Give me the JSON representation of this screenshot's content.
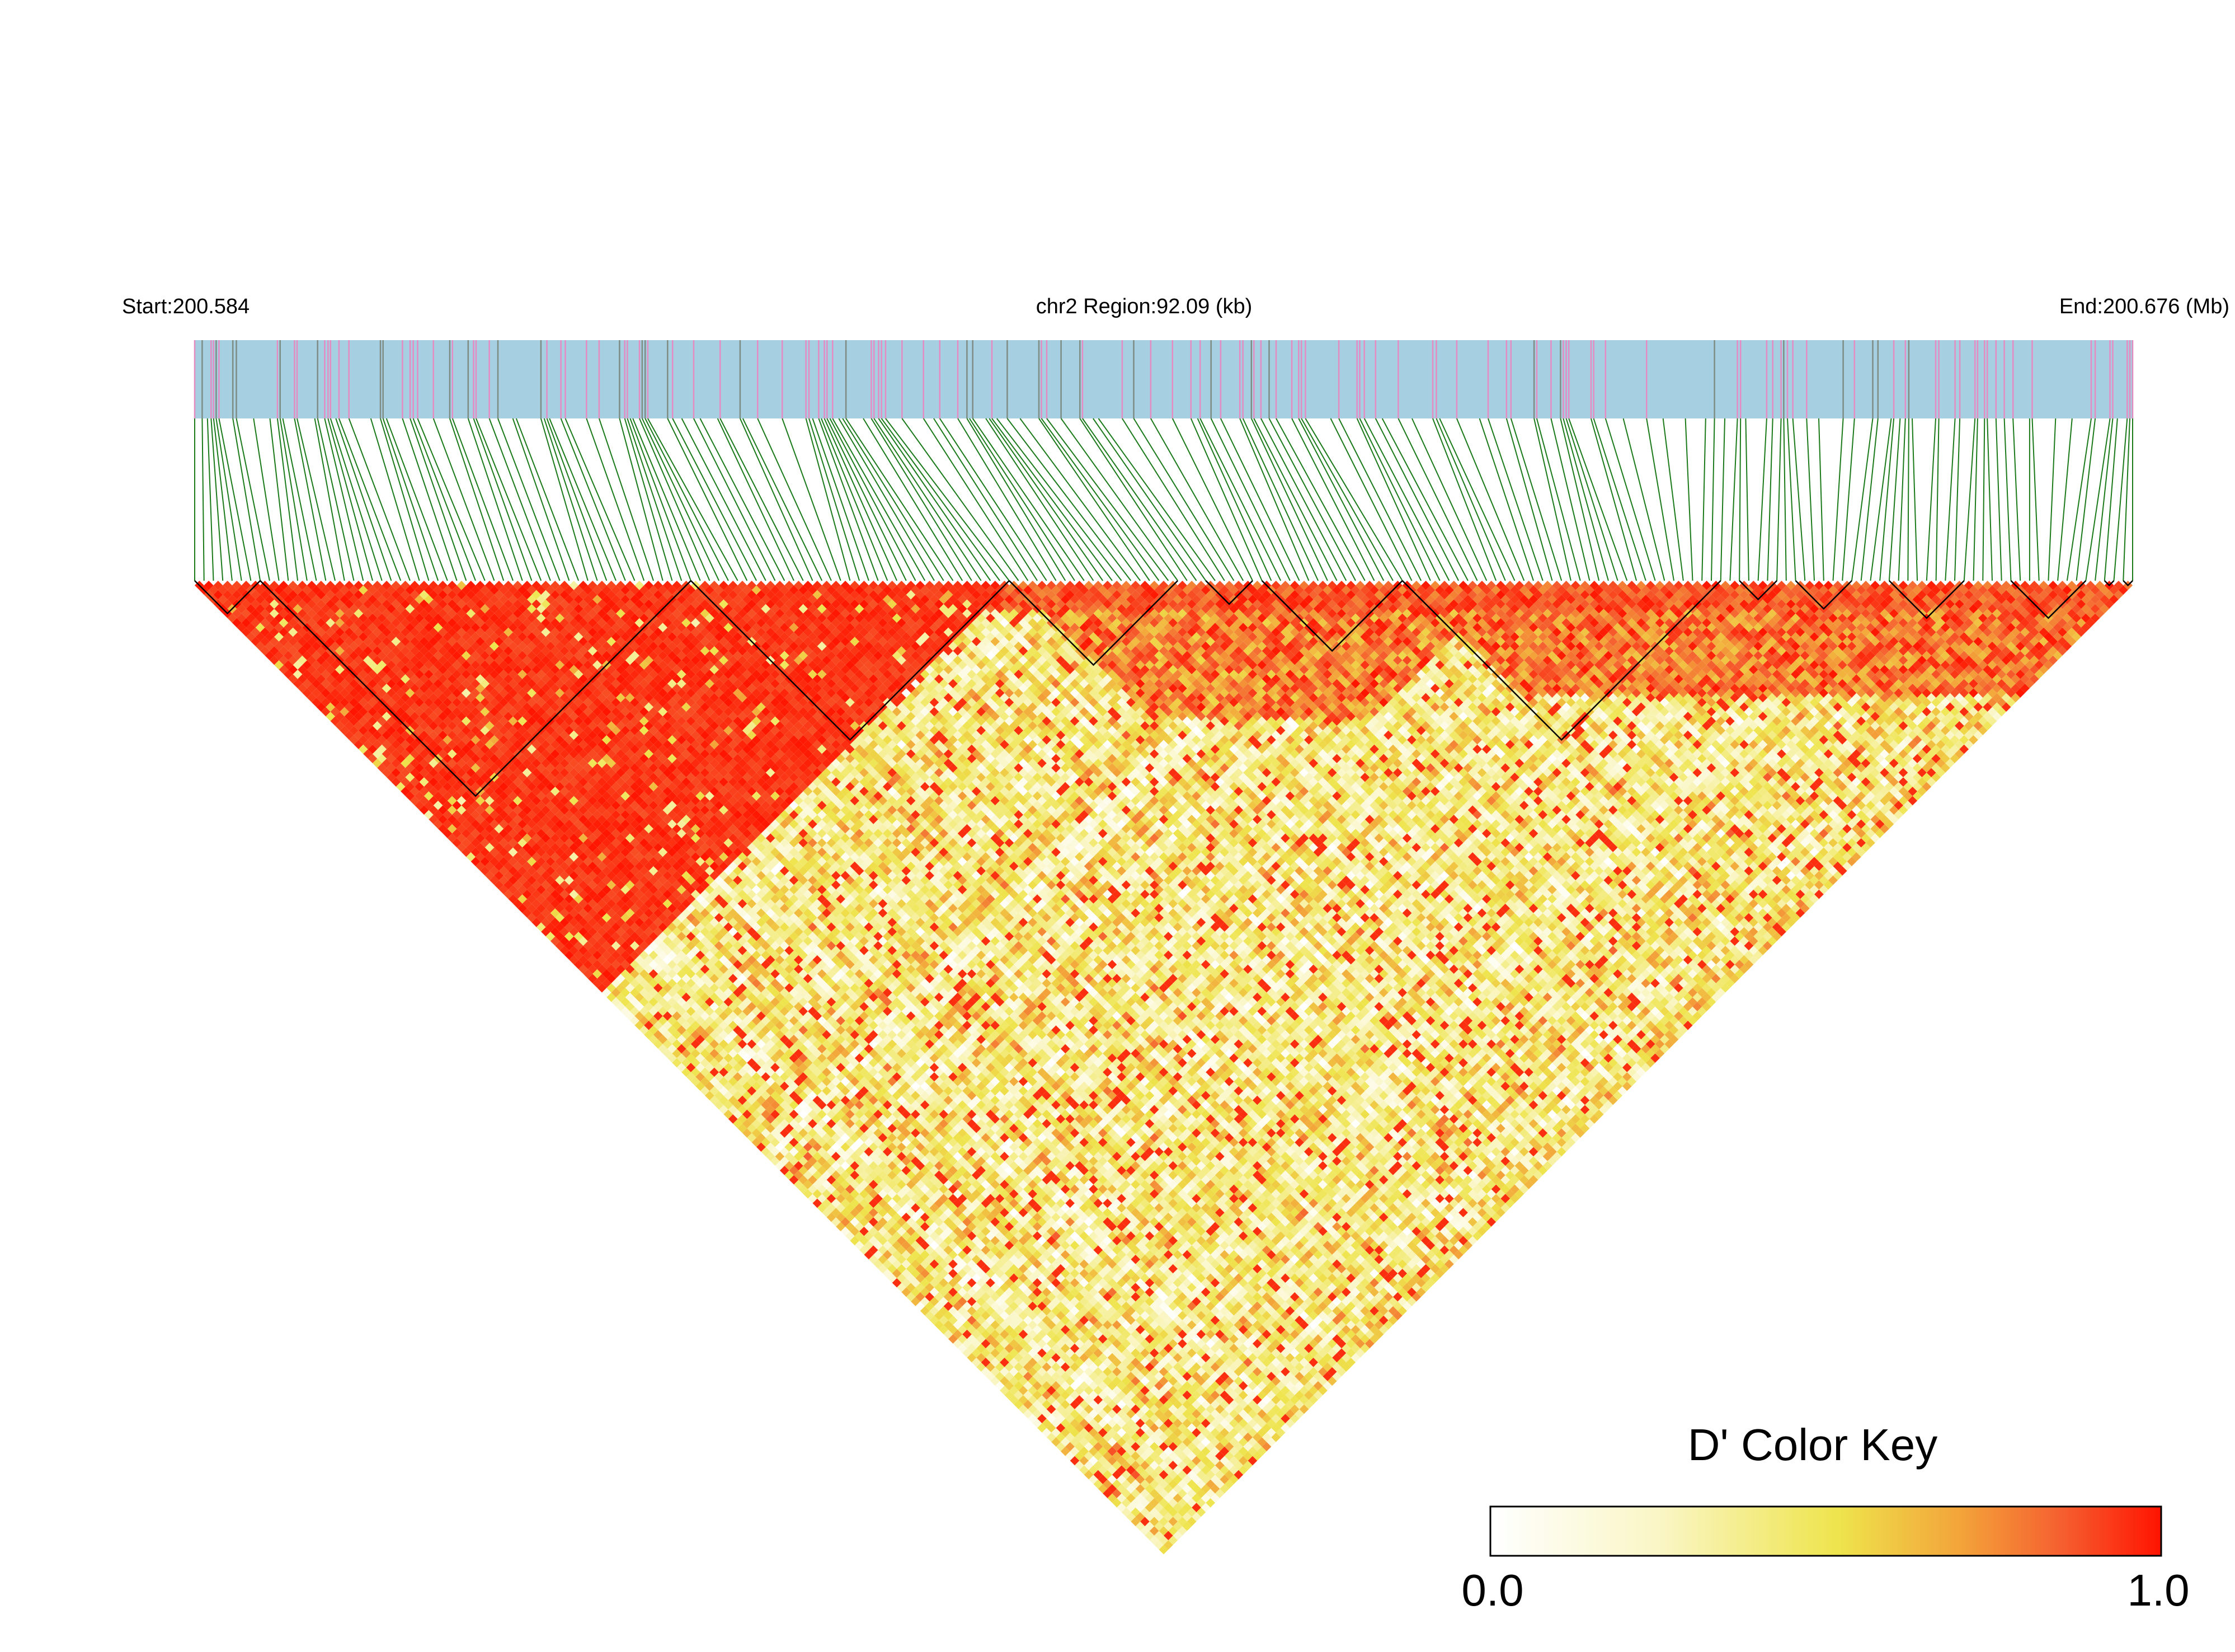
{
  "chart_data": {
    "type": "heatmap",
    "description_label": "",
    "header": {
      "start_label": "Start:200.584",
      "region_label": "chr2 Region:92.09 (kb)",
      "end_label": "End:200.676 (Mb)"
    },
    "region": {
      "chromosome": "chr2",
      "start_mb": 200.584,
      "end_mb": 200.676,
      "length_kb": 92.09
    },
    "n_snps": 208,
    "colors": {
      "track_background": "#a6cfe2",
      "track_snp_pink": "#e48cc2",
      "track_snp_gray": "#7e8c84",
      "connector_line": "#1a7a1a",
      "ld_high": "#ff1500",
      "ld_mid": "#f0e24a",
      "ld_low": "#ffffff",
      "block_outline": "#000000"
    },
    "ld_blocks_snp_index_ranges": [
      [
        1,
        8
      ],
      [
        8,
        54
      ],
      [
        54,
        88
      ],
      [
        88,
        106
      ],
      [
        109,
        114
      ],
      [
        115,
        130
      ],
      [
        130,
        164
      ],
      [
        166,
        170
      ],
      [
        172,
        178
      ],
      [
        182,
        190
      ],
      [
        195,
        203
      ],
      [
        205,
        206
      ],
      [
        207,
        208
      ]
    ],
    "color_key": {
      "title": "D' Color Key",
      "min_label": "0.0",
      "max_label": "1.0",
      "min": 0.0,
      "max": 1.0
    }
  }
}
